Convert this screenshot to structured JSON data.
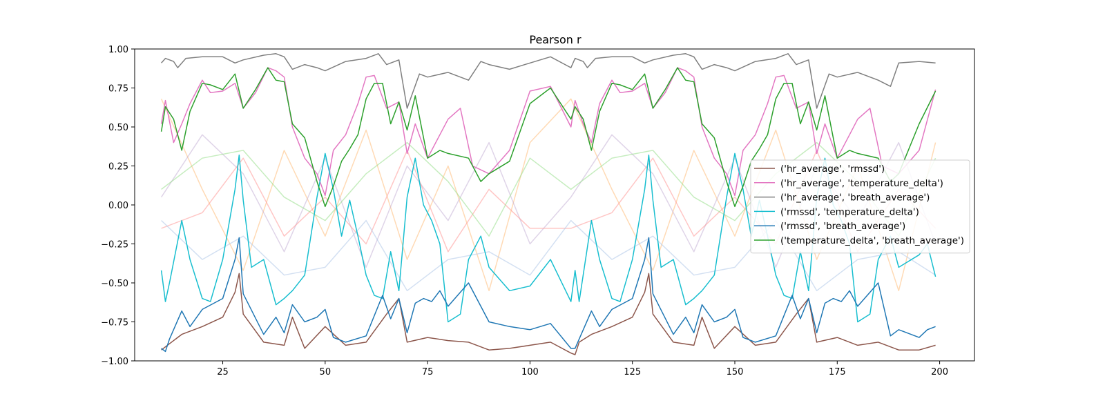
{
  "chart_data": {
    "type": "line",
    "title": "Pearson r",
    "xlabel": "",
    "ylabel": "",
    "xlim": [
      3.5,
      208.5
    ],
    "ylim": [
      -1.0,
      1.0
    ],
    "x_ticks": [
      25,
      50,
      75,
      100,
      125,
      150,
      175,
      200
    ],
    "x_tick_labels": [
      "25",
      "50",
      "75",
      "100",
      "125",
      "150",
      "175",
      "200"
    ],
    "y_ticks": [
      1.0,
      0.75,
      0.5,
      0.25,
      0.0,
      -0.25,
      -0.5,
      -0.75,
      -1.0
    ],
    "y_tick_labels": [
      "1.00",
      "0.75",
      "0.50",
      "0.25",
      "0.00",
      "−0.25",
      "−0.50",
      "−0.75",
      "−1.00"
    ],
    "grid": false,
    "legend_position": "center-right",
    "series": [
      {
        "name": "('hr_average', 'rmssd')",
        "color": "#8c564b",
        "x": [
          10,
          15,
          20,
          25,
          28,
          29,
          30,
          35,
          40,
          42,
          45,
          50,
          55,
          60,
          65,
          68,
          70,
          75,
          80,
          85,
          90,
          95,
          100,
          105,
          110,
          111,
          112,
          115,
          120,
          125,
          128,
          129,
          130,
          135,
          140,
          142,
          145,
          150,
          155,
          160,
          165,
          168,
          170,
          175,
          180,
          185,
          190,
          195,
          199
        ],
        "values": [
          -0.93,
          -0.83,
          -0.78,
          -0.72,
          -0.56,
          -0.44,
          -0.7,
          -0.88,
          -0.9,
          -0.72,
          -0.92,
          -0.78,
          -0.9,
          -0.88,
          -0.7,
          -0.6,
          -0.88,
          -0.85,
          -0.87,
          -0.88,
          -0.93,
          -0.92,
          -0.9,
          -0.88,
          -0.95,
          -0.96,
          -0.88,
          -0.83,
          -0.78,
          -0.72,
          -0.56,
          -0.44,
          -0.7,
          -0.88,
          -0.9,
          -0.72,
          -0.92,
          -0.78,
          -0.9,
          -0.88,
          -0.7,
          -0.6,
          -0.88,
          -0.85,
          -0.9,
          -0.88,
          -0.93,
          -0.93,
          -0.9
        ]
      },
      {
        "name": "('hr_average', 'temperature_delta')",
        "color": "#e377c2",
        "x": [
          10,
          11,
          13,
          15,
          17,
          20,
          22,
          25,
          28,
          30,
          33,
          36,
          38,
          40,
          42,
          45,
          48,
          50,
          52,
          55,
          58,
          60,
          62,
          65,
          68,
          70,
          72,
          75,
          78,
          80,
          83,
          86,
          90,
          95,
          100,
          105,
          110,
          111,
          113,
          115,
          117,
          120,
          122,
          125,
          128,
          130,
          133,
          136,
          138,
          140,
          142,
          145,
          148,
          150,
          152,
          155,
          158,
          160,
          162,
          165,
          168,
          170,
          172,
          175,
          178,
          180,
          183,
          186,
          190,
          195,
          199
        ],
        "values": [
          0.52,
          0.67,
          0.4,
          0.52,
          0.65,
          0.8,
          0.72,
          0.73,
          0.78,
          0.62,
          0.72,
          0.88,
          0.86,
          0.82,
          0.5,
          0.3,
          0.2,
          0.06,
          0.35,
          0.45,
          0.65,
          0.82,
          0.83,
          0.62,
          0.66,
          0.33,
          0.52,
          0.3,
          0.45,
          0.55,
          0.62,
          0.25,
          0.2,
          0.35,
          0.73,
          0.76,
          0.5,
          0.67,
          0.52,
          0.4,
          0.65,
          0.8,
          0.72,
          0.73,
          0.78,
          0.62,
          0.72,
          0.88,
          0.86,
          0.82,
          0.5,
          0.3,
          0.2,
          0.06,
          0.35,
          0.45,
          0.65,
          0.82,
          0.83,
          0.62,
          0.66,
          0.33,
          0.52,
          0.3,
          0.45,
          0.55,
          0.62,
          0.25,
          0.2,
          0.35,
          0.74
        ]
      },
      {
        "name": "('hr_average', 'breath_average')",
        "color": "#7f7f7f",
        "x": [
          10,
          11,
          13,
          14,
          16,
          20,
          25,
          28,
          30,
          35,
          38,
          40,
          42,
          45,
          48,
          50,
          55,
          60,
          63,
          65,
          68,
          70,
          73,
          75,
          80,
          85,
          88,
          90,
          95,
          100,
          105,
          110,
          111,
          113,
          114,
          116,
          120,
          125,
          128,
          130,
          135,
          138,
          140,
          142,
          145,
          148,
          150,
          155,
          160,
          163,
          165,
          168,
          170,
          173,
          175,
          180,
          185,
          188,
          190,
          195,
          199
        ],
        "values": [
          0.91,
          0.94,
          0.92,
          0.88,
          0.94,
          0.95,
          0.95,
          0.91,
          0.93,
          0.96,
          0.97,
          0.95,
          0.87,
          0.9,
          0.88,
          0.86,
          0.92,
          0.94,
          0.97,
          0.9,
          0.93,
          0.62,
          0.84,
          0.82,
          0.85,
          0.8,
          0.92,
          0.9,
          0.87,
          0.91,
          0.95,
          0.88,
          0.94,
          0.92,
          0.88,
          0.94,
          0.95,
          0.95,
          0.91,
          0.93,
          0.96,
          0.97,
          0.95,
          0.87,
          0.9,
          0.88,
          0.86,
          0.92,
          0.94,
          0.97,
          0.9,
          0.93,
          0.62,
          0.84,
          0.82,
          0.85,
          0.8,
          0.76,
          0.91,
          0.92,
          0.91
        ]
      },
      {
        "name": "('rmssd', 'temperature_delta')",
        "color": "#17becf",
        "x": [
          10,
          11,
          12,
          15,
          17,
          20,
          22,
          25,
          28,
          29,
          30,
          32,
          35,
          38,
          40,
          42,
          45,
          48,
          50,
          52,
          54,
          56,
          58,
          60,
          62,
          64,
          66,
          68,
          70,
          72,
          74,
          76,
          78,
          80,
          83,
          85,
          88,
          90,
          95,
          100,
          105,
          110,
          111,
          112,
          115,
          117,
          120,
          122,
          125,
          128,
          129,
          130,
          132,
          135,
          138,
          140,
          142,
          145,
          148,
          150,
          152,
          154,
          156,
          158,
          160,
          162,
          164,
          166,
          168,
          170,
          172,
          174,
          176,
          178,
          180,
          183,
          185,
          188,
          190,
          195,
          197,
          199
        ],
        "values": [
          -0.42,
          -0.62,
          -0.5,
          -0.1,
          -0.35,
          -0.6,
          -0.62,
          -0.35,
          0.1,
          0.32,
          0.03,
          -0.4,
          -0.35,
          -0.64,
          -0.6,
          -0.55,
          -0.45,
          0.05,
          0.33,
          0.1,
          -0.2,
          0.03,
          -0.2,
          -0.45,
          -0.58,
          -0.6,
          -0.3,
          -0.55,
          0.05,
          0.3,
          0.0,
          -0.1,
          -0.25,
          -0.75,
          -0.7,
          -0.35,
          -0.2,
          -0.4,
          -0.55,
          -0.52,
          -0.35,
          -0.62,
          -0.42,
          -0.62,
          -0.1,
          -0.35,
          -0.6,
          -0.62,
          -0.35,
          0.1,
          0.32,
          0.03,
          -0.4,
          -0.35,
          -0.64,
          -0.6,
          -0.55,
          -0.45,
          0.05,
          0.33,
          0.1,
          -0.2,
          0.03,
          -0.2,
          -0.45,
          -0.58,
          -0.6,
          -0.3,
          -0.55,
          0.05,
          0.3,
          0.0,
          -0.1,
          -0.25,
          -0.75,
          -0.7,
          -0.35,
          -0.2,
          -0.4,
          -0.32,
          -0.25,
          -0.46
        ]
      },
      {
        "name": "('rmssd', 'breath_average')",
        "color": "#1f77b4",
        "x": [
          10,
          11,
          12,
          15,
          17,
          20,
          25,
          28,
          29,
          30,
          35,
          38,
          40,
          42,
          45,
          48,
          50,
          52,
          55,
          60,
          64,
          66,
          68,
          70,
          72,
          74,
          76,
          78,
          80,
          85,
          90,
          95,
          100,
          105,
          110,
          111,
          112,
          115,
          117,
          120,
          125,
          128,
          129,
          130,
          135,
          138,
          140,
          142,
          145,
          148,
          150,
          152,
          155,
          160,
          164,
          166,
          168,
          170,
          172,
          174,
          176,
          178,
          180,
          185,
          188,
          190,
          195,
          197,
          199
        ],
        "values": [
          -0.92,
          -0.94,
          -0.86,
          -0.68,
          -0.78,
          -0.67,
          -0.6,
          -0.35,
          -0.21,
          -0.57,
          -0.83,
          -0.72,
          -0.82,
          -0.64,
          -0.75,
          -0.72,
          -0.67,
          -0.85,
          -0.88,
          -0.84,
          -0.58,
          -0.73,
          -0.6,
          -0.82,
          -0.63,
          -0.6,
          -0.62,
          -0.55,
          -0.65,
          -0.5,
          -0.75,
          -0.78,
          -0.8,
          -0.76,
          -0.92,
          -0.92,
          -0.86,
          -0.68,
          -0.78,
          -0.67,
          -0.6,
          -0.35,
          -0.21,
          -0.57,
          -0.83,
          -0.72,
          -0.82,
          -0.64,
          -0.75,
          -0.72,
          -0.67,
          -0.85,
          -0.88,
          -0.84,
          -0.58,
          -0.73,
          -0.6,
          -0.82,
          -0.63,
          -0.6,
          -0.62,
          -0.55,
          -0.65,
          -0.5,
          -0.84,
          -0.8,
          -0.85,
          -0.8,
          -0.78
        ]
      },
      {
        "name": "('temperature_delta', 'breath_average')",
        "color": "#2ca02c",
        "x": [
          10,
          11,
          13,
          15,
          17,
          20,
          22,
          25,
          28,
          30,
          33,
          36,
          38,
          40,
          42,
          45,
          48,
          50,
          52,
          54,
          56,
          58,
          60,
          62,
          64,
          66,
          68,
          70,
          72,
          75,
          78,
          80,
          85,
          88,
          90,
          95,
          100,
          105,
          110,
          111,
          113,
          115,
          117,
          120,
          122,
          125,
          128,
          130,
          133,
          136,
          138,
          140,
          142,
          145,
          148,
          150,
          152,
          154,
          156,
          158,
          160,
          162,
          164,
          166,
          168,
          170,
          172,
          175,
          178,
          180,
          185,
          188,
          190,
          195,
          199
        ],
        "values": [
          0.47,
          0.63,
          0.55,
          0.35,
          0.6,
          0.78,
          0.77,
          0.74,
          0.84,
          0.62,
          0.74,
          0.88,
          0.8,
          0.79,
          0.52,
          0.43,
          0.15,
          -0.01,
          0.12,
          0.28,
          0.36,
          0.45,
          0.68,
          0.78,
          0.78,
          0.52,
          0.66,
          0.48,
          0.7,
          0.3,
          0.35,
          0.33,
          0.3,
          0.15,
          0.2,
          0.28,
          0.65,
          0.75,
          0.55,
          0.63,
          0.55,
          0.35,
          0.6,
          0.78,
          0.77,
          0.74,
          0.84,
          0.62,
          0.74,
          0.88,
          0.8,
          0.79,
          0.52,
          0.43,
          0.15,
          -0.01,
          0.12,
          0.28,
          0.36,
          0.45,
          0.68,
          0.78,
          0.78,
          0.52,
          0.66,
          0.48,
          0.7,
          0.3,
          0.35,
          0.33,
          0.3,
          0.15,
          0.2,
          0.52,
          0.73
        ]
      }
    ],
    "background_series": [
      {
        "color": "#ffbb78",
        "x": [
          10,
          20,
          30,
          40,
          50,
          60,
          70,
          80,
          90,
          100,
          110,
          120,
          130,
          140,
          150,
          160,
          170,
          180,
          190,
          199
        ],
        "values": [
          0.68,
          0.1,
          -0.42,
          0.35,
          -0.2,
          0.48,
          -0.35,
          0.25,
          -0.55,
          0.4,
          0.68,
          0.1,
          -0.42,
          0.35,
          -0.2,
          0.48,
          -0.35,
          0.25,
          -0.55,
          0.4
        ]
      },
      {
        "color": "#c5b0d5",
        "x": [
          10,
          20,
          30,
          40,
          50,
          60,
          70,
          80,
          90,
          100,
          110,
          120,
          130,
          140,
          150,
          160,
          170,
          180,
          190,
          199
        ],
        "values": [
          0.05,
          0.45,
          0.2,
          -0.3,
          0.3,
          -0.4,
          0.25,
          -0.1,
          0.4,
          -0.25,
          0.05,
          0.45,
          0.2,
          -0.3,
          0.3,
          -0.4,
          0.25,
          -0.1,
          0.4,
          -0.25
        ]
      },
      {
        "color": "#ff9896",
        "x": [
          10,
          20,
          30,
          40,
          50,
          60,
          70,
          80,
          90,
          100,
          110,
          120,
          130,
          140,
          150,
          160,
          170,
          180,
          190,
          199
        ],
        "values": [
          -0.15,
          -0.05,
          0.3,
          -0.2,
          0.05,
          -0.25,
          0.35,
          -0.3,
          0.1,
          -0.15,
          -0.15,
          -0.05,
          0.3,
          -0.2,
          0.05,
          -0.25,
          0.35,
          -0.3,
          0.1,
          -0.15
        ]
      },
      {
        "color": "#98df8a",
        "x": [
          10,
          20,
          30,
          40,
          50,
          60,
          70,
          80,
          90,
          100,
          110,
          120,
          130,
          140,
          150,
          160,
          170,
          180,
          190,
          199
        ],
        "values": [
          0.1,
          0.3,
          0.35,
          0.05,
          -0.1,
          0.2,
          0.4,
          0.15,
          -0.2,
          0.3,
          0.1,
          0.3,
          0.35,
          0.05,
          -0.1,
          0.2,
          0.4,
          0.15,
          -0.2,
          0.3
        ]
      },
      {
        "color": "#aec7e8",
        "x": [
          10,
          20,
          30,
          40,
          50,
          60,
          70,
          80,
          90,
          100,
          110,
          120,
          130,
          140,
          150,
          160,
          170,
          180,
          190,
          199
        ],
        "values": [
          -0.1,
          -0.35,
          -0.2,
          -0.45,
          -0.4,
          -0.1,
          -0.55,
          -0.35,
          -0.3,
          -0.45,
          -0.1,
          -0.35,
          -0.2,
          -0.45,
          -0.4,
          -0.1,
          -0.55,
          -0.35,
          -0.3,
          -0.45
        ]
      }
    ]
  }
}
